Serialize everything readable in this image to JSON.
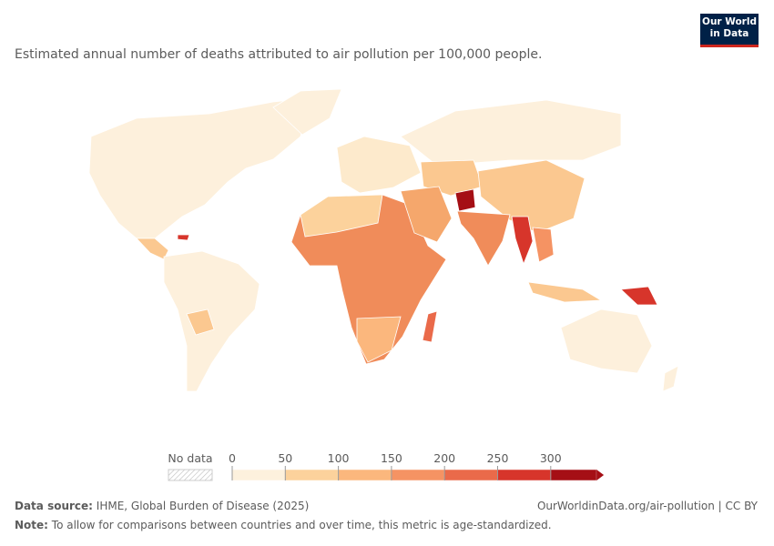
{
  "logo": {
    "line1": "Our World",
    "line2": "in Data"
  },
  "subtitle": "Estimated annual number of deaths attributed to air pollution per 100,000 people.",
  "legend": {
    "no_data": "No data",
    "ticks": [
      0,
      50,
      100,
      150,
      200,
      250,
      300
    ],
    "colors": [
      "#fdf1dd",
      "#fcd29c",
      "#fbb77d",
      "#f59363",
      "#ea6a4a",
      "#d7352b",
      "#a50f15"
    ]
  },
  "footer": {
    "source_label": "Data source:",
    "source": "IHME, Global Burden of Disease (2025)",
    "link": "OurWorldinData.org/air-pollution | CC BY",
    "note_label": "Note:",
    "note": "To allow for comparisons between countries and over time, this metric is age-standardized."
  }
}
